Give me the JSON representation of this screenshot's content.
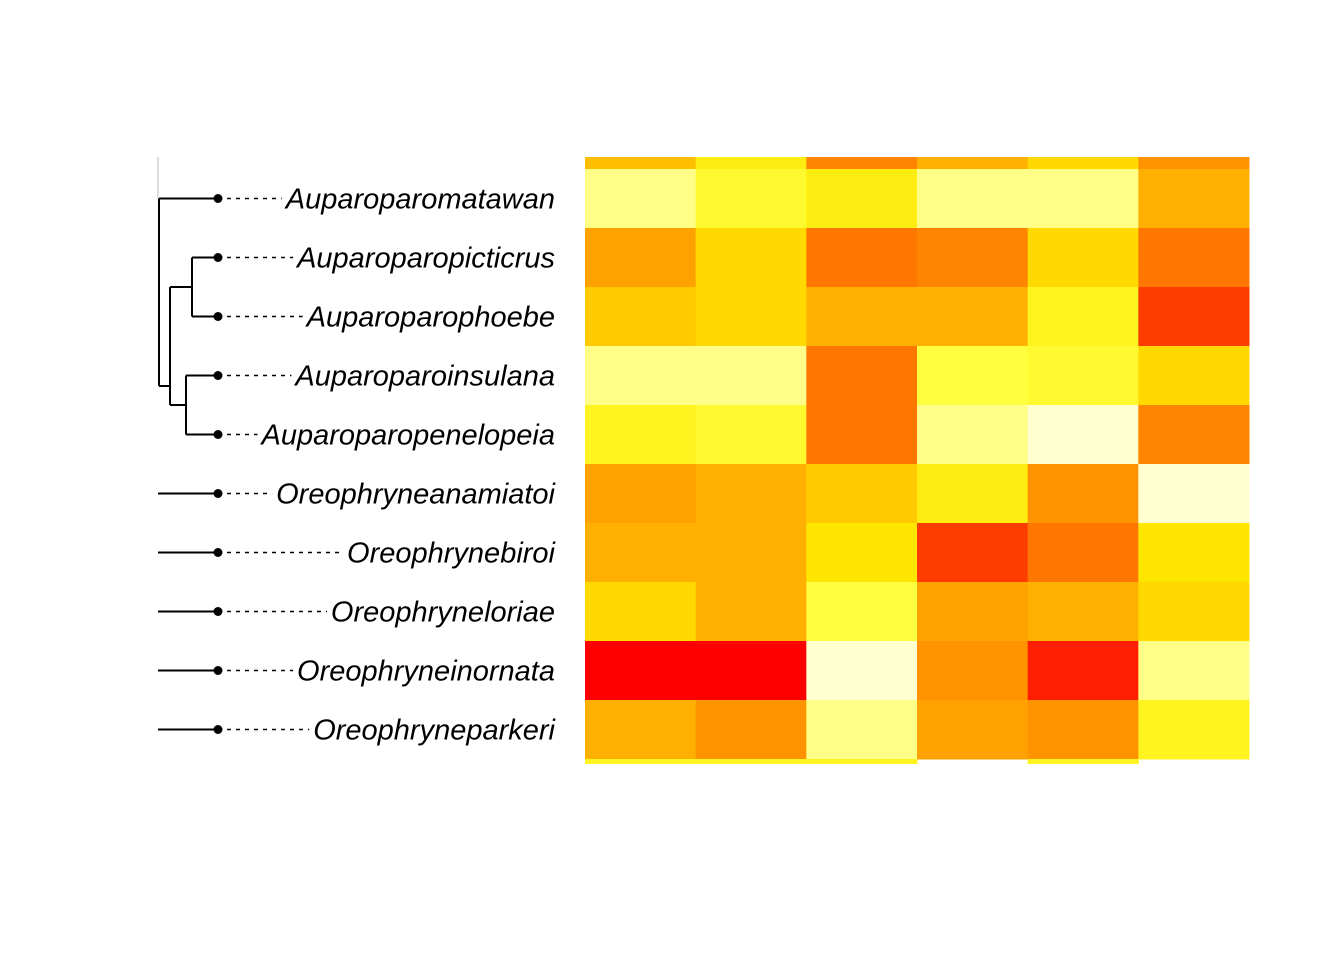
{
  "chart_data": {
    "type": "heatmap",
    "title": "",
    "xlabel": "",
    "ylabel": "",
    "rows": [
      "Auparoparomatawan",
      "Auparoparopicticrus",
      "Auparoparophoebe",
      "Auparoparoinsulana",
      "Auparoparopenelopeia",
      "Oreophryneanamiatoi",
      "Oreophrynebiroi",
      "Oreophryneloriae",
      "Oreophryneinornata",
      "Oreophryneparkeri"
    ],
    "columns": 6,
    "values": [
      [
        0.9,
        0.75,
        0.65,
        0.9,
        0.9,
        0.4
      ],
      [
        0.35,
        0.55,
        0.2,
        0.25,
        0.55,
        0.2
      ],
      [
        0.5,
        0.55,
        0.4,
        0.4,
        0.7,
        0.1
      ],
      [
        0.9,
        0.9,
        0.2,
        0.8,
        0.75,
        0.55
      ],
      [
        0.7,
        0.75,
        0.2,
        0.9,
        1.0,
        0.25
      ],
      [
        0.35,
        0.4,
        0.5,
        0.65,
        0.3,
        1.0
      ],
      [
        0.4,
        0.4,
        0.6,
        0.1,
        0.2,
        0.6
      ],
      [
        0.55,
        0.4,
        0.8,
        0.35,
        0.4,
        0.55
      ],
      [
        0.0,
        0.0,
        1.0,
        0.3,
        0.05,
        0.9
      ],
      [
        0.4,
        0.3,
        0.9,
        0.35,
        0.3,
        0.7
      ]
    ],
    "edge_strip_top": [
      0.45,
      0.65,
      0.25,
      0.4,
      0.55,
      0.3
    ],
    "edge_strip_bottom": [
      0.7,
      0.7,
      0.7,
      null,
      0.7,
      null
    ],
    "color_scale": [
      "#FF0000",
      "#FF7700",
      "#FFB000",
      "#FFE600",
      "#FFFF40",
      "#FFFFD0"
    ],
    "tree": {
      "groups": [
        {
          "clade": [
            "Auparoparomatawan",
            [
              "Auparoparopicticrus",
              "Auparoparophoebe"
            ],
            [
              "Auparoparoinsulana",
              "Auparoparopenelopeia"
            ]
          ]
        },
        {
          "clade": [
            "Oreophryneanamiatoi",
            "Oreophrynebiroi",
            "Oreophryneloriae",
            "Oreophryneinornata",
            "Oreophryneparkeri"
          ]
        }
      ],
      "tip_symbol": "filled-circle",
      "label_connector": "dotted"
    }
  }
}
